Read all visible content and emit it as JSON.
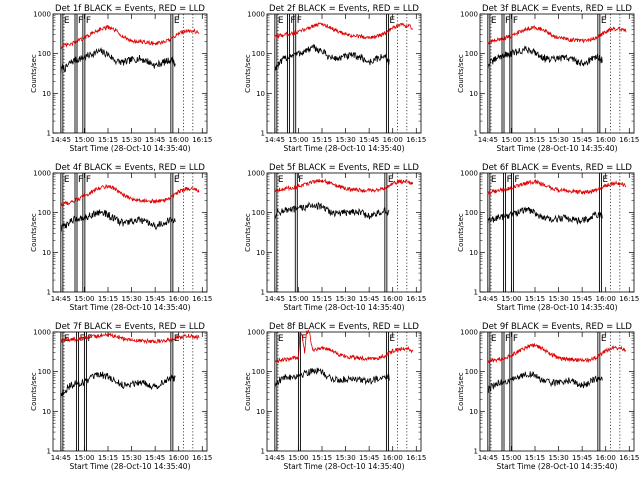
{
  "colors": {
    "events": "#000000",
    "lld": "#e00000",
    "background": "#ffffff"
  },
  "chart_data": {
    "type": "line",
    "layout": "3x3 grid of time-series panels",
    "yscale": "log",
    "ylim": [
      1,
      1000
    ],
    "y_ticks": [
      "1",
      "10",
      "100",
      "1000"
    ],
    "ylabel": "Counts/sec",
    "x_ticks": [
      "14:45",
      "15:00",
      "15:15",
      "15:30",
      "15:45",
      "16:00",
      "16:15"
    ],
    "x_tick_values": [
      0,
      15,
      30,
      45,
      60,
      75,
      90
    ],
    "x_values_note": "minutes after 14:45",
    "xlabel": "Start Time (28-Oct-10 14:35:40)",
    "panels": [
      {
        "title": "Det 1f BLACK = Events, RED = LLD",
        "flags": [
          {
            "t": 0,
            "label": "E"
          },
          {
            "t": 9,
            "label": "F"
          },
          {
            "t": 14,
            "label": "F"
          },
          {
            "t": 70,
            "label": "E"
          }
        ],
        "series": [
          {
            "name": "Events",
            "color": "#000000",
            "x": [
              0,
              1,
              3,
              6,
              10,
              15,
              20,
              25,
              30,
              35,
              40,
              45,
              50,
              55,
              60,
              65,
              70,
              73
            ],
            "y": [
              35,
              45,
              42,
              60,
              70,
              80,
              100,
              115,
              95,
              65,
              60,
              70,
              75,
              65,
              50,
              60,
              70,
              55
            ]
          },
          {
            "name": "LLD",
            "color": "#e00000",
            "x": [
              0,
              2,
              6,
              10,
              15,
              20,
              25,
              30,
              35,
              40,
              45,
              50,
              55,
              60,
              65,
              70,
              75,
              80,
              85,
              88
            ],
            "y": [
              140,
              160,
              170,
              200,
              250,
              330,
              420,
              460,
              380,
              260,
              210,
              200,
              190,
              180,
              190,
              230,
              330,
              380,
              370,
              330
            ]
          }
        ]
      },
      {
        "title": "Det 2f BLACK = Events, RED = LLD",
        "flags": [
          {
            "t": 0,
            "label": "E"
          },
          {
            "t": 8,
            "label": "F"
          },
          {
            "t": 12,
            "label": "F"
          },
          {
            "t": 71,
            "label": "E"
          }
        ],
        "series": [
          {
            "name": "Events",
            "color": "#000000",
            "x": [
              0,
              1,
              3,
              6,
              10,
              15,
              20,
              25,
              30,
              35,
              40,
              45,
              50,
              55,
              60,
              65,
              70,
              73
            ],
            "y": [
              40,
              50,
              55,
              75,
              90,
              100,
              120,
              140,
              115,
              80,
              75,
              85,
              90,
              80,
              60,
              75,
              85,
              60
            ]
          },
          {
            "name": "LLD",
            "color": "#e00000",
            "x": [
              0,
              2,
              6,
              10,
              15,
              20,
              25,
              30,
              35,
              40,
              45,
              50,
              55,
              60,
              65,
              70,
              75,
              80,
              85,
              88
            ],
            "y": [
              250,
              280,
              300,
              320,
              350,
              420,
              520,
              560,
              470,
              360,
              300,
              280,
              270,
              260,
              270,
              320,
              440,
              520,
              500,
              440
            ]
          }
        ]
      },
      {
        "title": "Det 3f BLACK = Events, RED = LLD",
        "flags": [
          {
            "t": 0,
            "label": "E"
          },
          {
            "t": 9,
            "label": "F"
          },
          {
            "t": 14,
            "label": "F"
          },
          {
            "t": 70,
            "label": "E"
          }
        ],
        "series": [
          {
            "name": "Events",
            "color": "#000000",
            "x": [
              0,
              1,
              3,
              6,
              10,
              15,
              20,
              25,
              30,
              35,
              40,
              45,
              50,
              55,
              60,
              65,
              70,
              73
            ],
            "y": [
              45,
              60,
              62,
              80,
              90,
              100,
              115,
              130,
              110,
              80,
              70,
              75,
              80,
              70,
              55,
              70,
              85,
              65
            ]
          },
          {
            "name": "LLD",
            "color": "#e00000",
            "x": [
              0,
              2,
              6,
              10,
              15,
              20,
              25,
              30,
              35,
              40,
              45,
              50,
              55,
              60,
              65,
              70,
              75,
              80,
              85,
              88
            ],
            "y": [
              180,
              200,
              220,
              240,
              280,
              350,
              430,
              470,
              400,
              300,
              250,
              230,
              220,
              210,
              220,
              260,
              360,
              420,
              410,
              360
            ]
          }
        ]
      },
      {
        "title": "Det 4f BLACK = Events, RED = LLD",
        "flags": [
          {
            "t": 0,
            "label": "E"
          },
          {
            "t": 9,
            "label": "F"
          },
          {
            "t": 14,
            "label": "F"
          },
          {
            "t": 70,
            "label": "E"
          }
        ],
        "series": [
          {
            "name": "Events",
            "color": "#000000",
            "x": [
              0,
              1,
              3,
              6,
              10,
              15,
              20,
              25,
              30,
              35,
              40,
              45,
              50,
              55,
              60,
              65,
              70,
              73
            ],
            "y": [
              35,
              45,
              48,
              60,
              70,
              75,
              90,
              105,
              90,
              65,
              55,
              60,
              65,
              55,
              45,
              55,
              65,
              55
            ]
          },
          {
            "name": "LLD",
            "color": "#e00000",
            "x": [
              0,
              2,
              6,
              10,
              15,
              20,
              25,
              30,
              35,
              40,
              45,
              50,
              55,
              60,
              65,
              70,
              75,
              80,
              85,
              88
            ],
            "y": [
              150,
              170,
              180,
              210,
              260,
              340,
              430,
              470,
              390,
              270,
              220,
              210,
              200,
              190,
              200,
              240,
              340,
              400,
              390,
              340
            ]
          }
        ]
      },
      {
        "title": "Det 5f BLACK = Events, RED = LLD",
        "flags": [
          {
            "t": 0,
            "label": "E"
          },
          {
            "t": 13,
            "label": "F"
          },
          {
            "t": 70,
            "label": "E"
          }
        ],
        "series": [
          {
            "name": "Events",
            "color": "#000000",
            "x": [
              0,
              1,
              3,
              6,
              10,
              15,
              20,
              25,
              30,
              35,
              40,
              45,
              50,
              55,
              60,
              65,
              70,
              73
            ],
            "y": [
              80,
              100,
              105,
              115,
              115,
              125,
              140,
              160,
              135,
              105,
              95,
              100,
              110,
              100,
              80,
              95,
              110,
              90
            ]
          },
          {
            "name": "LLD",
            "color": "#e00000",
            "x": [
              0,
              2,
              6,
              10,
              15,
              20,
              25,
              30,
              35,
              40,
              45,
              50,
              55,
              60,
              65,
              70,
              75,
              80,
              85,
              88
            ],
            "y": [
              360,
              380,
              400,
              420,
              450,
              520,
              620,
              650,
              560,
              460,
              400,
              380,
              370,
              360,
              370,
              420,
              540,
              620,
              600,
              540
            ]
          }
        ]
      },
      {
        "title": "Det 6f BLACK = Events, RED = LLD",
        "flags": [
          {
            "t": 0,
            "label": "E"
          },
          {
            "t": 10,
            "label": "F"
          },
          {
            "t": 15,
            "label": "F"
          },
          {
            "t": 71,
            "label": "E"
          }
        ],
        "series": [
          {
            "name": "Events",
            "color": "#000000",
            "x": [
              0,
              1,
              3,
              6,
              10,
              15,
              20,
              25,
              30,
              35,
              40,
              45,
              50,
              55,
              60,
              65,
              70,
              73
            ],
            "y": [
              55,
              65,
              68,
              75,
              80,
              90,
              105,
              120,
              100,
              75,
              65,
              70,
              75,
              68,
              60,
              75,
              90,
              75
            ]
          },
          {
            "name": "LLD",
            "color": "#e00000",
            "x": [
              0,
              2,
              6,
              10,
              15,
              20,
              25,
              30,
              35,
              40,
              45,
              50,
              55,
              60,
              65,
              70,
              75,
              80,
              85,
              88
            ],
            "y": [
              320,
              330,
              350,
              380,
              420,
              480,
              560,
              600,
              520,
              420,
              370,
              350,
              340,
              330,
              340,
              380,
              480,
              560,
              540,
              480
            ]
          }
        ]
      },
      {
        "title": "Det 7f BLACK = Events, RED = LLD",
        "flags": [
          {
            "t": 0,
            "label": "E"
          },
          {
            "t": 10,
            "label": "F"
          },
          {
            "t": 15,
            "label": "F"
          },
          {
            "t": 70,
            "label": "E"
          }
        ],
        "series": [
          {
            "name": "Events",
            "color": "#000000",
            "x": [
              0,
              1,
              3,
              6,
              10,
              15,
              20,
              25,
              30,
              35,
              40,
              45,
              50,
              55,
              60,
              65,
              70,
              73
            ],
            "y": [
              25,
              30,
              35,
              45,
              50,
              55,
              70,
              85,
              75,
              55,
              45,
              50,
              55,
              50,
              40,
              55,
              70,
              65
            ]
          },
          {
            "name": "LLD",
            "color": "#e00000",
            "x": [
              0,
              2,
              6,
              10,
              15,
              20,
              25,
              30,
              35,
              40,
              45,
              50,
              55,
              60,
              65,
              70,
              75,
              80,
              85,
              88
            ],
            "y": [
              600,
              620,
              640,
              660,
              700,
              750,
              820,
              860,
              780,
              680,
              620,
              600,
              590,
              580,
              590,
              640,
              740,
              800,
              780,
              720
            ]
          }
        ]
      },
      {
        "title": "Det 8f BLACK = Events, RED = LLD",
        "flags": [
          {
            "t": 0,
            "label": "E"
          },
          {
            "t": 15,
            "label": "F"
          },
          {
            "t": 71,
            "label": "E"
          }
        ],
        "series": [
          {
            "name": "Events",
            "color": "#000000",
            "x": [
              0,
              1,
              3,
              6,
              10,
              15,
              20,
              25,
              30,
              35,
              40,
              45,
              50,
              55,
              60,
              65,
              70,
              73
            ],
            "y": [
              40,
              55,
              60,
              70,
              75,
              80,
              95,
              110,
              95,
              70,
              60,
              65,
              70,
              62,
              55,
              68,
              80,
              70
            ]
          },
          {
            "name": "LLD",
            "color": "#e00000",
            "x": [
              0,
              2,
              6,
              10,
              15,
              16,
              17,
              19,
              20,
              22,
              24,
              25,
              30,
              35,
              40,
              45,
              50,
              55,
              60,
              65,
              70,
              75,
              80,
              85,
              88
            ],
            "y": [
              180,
              190,
              200,
              210,
              230,
              1000,
              1000,
              300,
              1000,
              1000,
              350,
              360,
              400,
              360,
              280,
              240,
              230,
              220,
              210,
              220,
              250,
              330,
              380,
              370,
              330
            ]
          }
        ]
      },
      {
        "title": "Det 9f BLACK = Events, RED = LLD",
        "flags": [
          {
            "t": 0,
            "label": "E"
          },
          {
            "t": 9,
            "label": "F"
          },
          {
            "t": 14,
            "label": "F"
          },
          {
            "t": 70,
            "label": "E"
          }
        ],
        "series": [
          {
            "name": "Events",
            "color": "#000000",
            "x": [
              0,
              1,
              3,
              6,
              10,
              15,
              20,
              25,
              30,
              35,
              40,
              45,
              50,
              55,
              60,
              65,
              70,
              73
            ],
            "y": [
              30,
              38,
              42,
              50,
              55,
              60,
              75,
              90,
              80,
              60,
              50,
              55,
              60,
              55,
              45,
              55,
              70,
              60
            ]
          },
          {
            "name": "LLD",
            "color": "#e00000",
            "x": [
              0,
              2,
              6,
              10,
              15,
              20,
              25,
              30,
              35,
              40,
              45,
              50,
              55,
              60,
              65,
              70,
              75,
              80,
              85,
              88
            ],
            "y": [
              170,
              190,
              200,
              220,
              260,
              330,
              420,
              460,
              380,
              270,
              220,
              210,
              200,
              190,
              200,
              240,
              340,
              400,
              390,
              340
            ]
          }
        ]
      }
    ]
  }
}
